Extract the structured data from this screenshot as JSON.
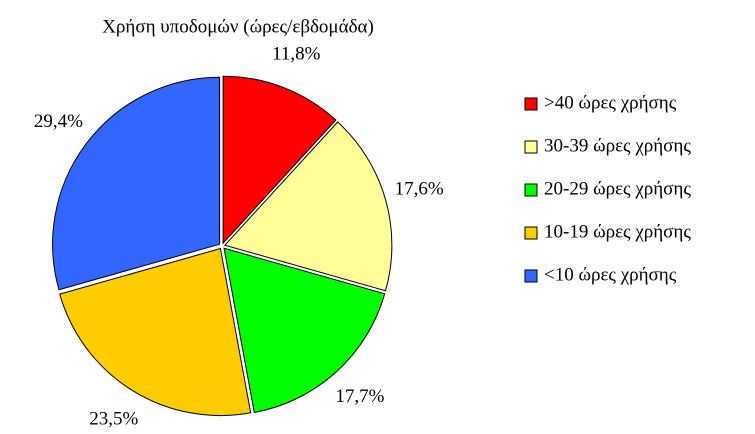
{
  "chart_data": {
    "type": "pie",
    "title": "Χρήση υποδομών (ώρες/εβδομάδα)",
    "categories": [
      ">40 ώρες χρήσης",
      "30-39 ώρες χρήσης",
      "20-29 ώρες χρήσης",
      "10-19 ώρες χρήσης",
      "<10 ώρες χρήσης"
    ],
    "values": [
      11.8,
      17.6,
      17.7,
      23.5,
      29.4
    ],
    "value_labels": [
      "11,8%",
      "17,6%",
      "17,7%",
      "23,5%",
      "29,4%"
    ],
    "colors": [
      "#ff0000",
      "#ffff99",
      "#00ff00",
      "#ffcc00",
      "#3366ff"
    ],
    "legend": "right"
  }
}
